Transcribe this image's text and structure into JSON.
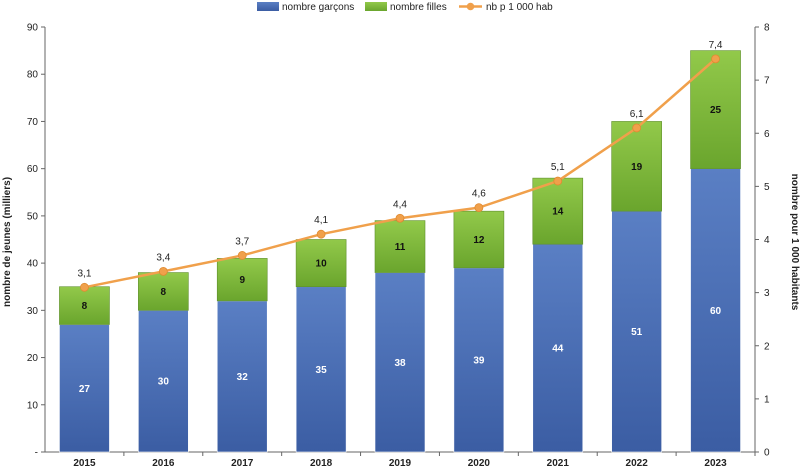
{
  "chart_data": {
    "type": "bar",
    "stacked": true,
    "categories": [
      "2015",
      "2016",
      "2017",
      "2018",
      "2019",
      "2020",
      "2021",
      "2022",
      "2023"
    ],
    "series": [
      {
        "name": "nombre garçons",
        "type": "bar",
        "axis": "left",
        "color": "#4a6fb5",
        "values": [
          27,
          30,
          32,
          35,
          38,
          39,
          44,
          51,
          60
        ],
        "labels": [
          "27",
          "30",
          "32",
          "35",
          "38",
          "39",
          "44",
          "51",
          "60"
        ]
      },
      {
        "name": "nombre filles",
        "type": "bar",
        "axis": "left",
        "color": "#7fba3a",
        "values": [
          8,
          8,
          9,
          10,
          11,
          12,
          14,
          19,
          25
        ],
        "labels": [
          "8",
          "8",
          "9",
          "10",
          "11",
          "12",
          "14",
          "19",
          "25"
        ]
      },
      {
        "name": "nb p 1 000 hab",
        "type": "line",
        "axis": "right",
        "color": "#f0a04b",
        "values": [
          3.1,
          3.4,
          3.7,
          4.1,
          4.4,
          4.6,
          5.1,
          6.1,
          7.4
        ],
        "labels": [
          "3,1",
          "3,4",
          "3,7",
          "4,1",
          "4,4",
          "4,6",
          "5,1",
          "6,1",
          "7,4"
        ]
      }
    ],
    "ylabel": "nombre de jeunes (milliers)",
    "y2label": "nombre pour 1 000 habitants",
    "ylim": [
      0,
      90
    ],
    "y2lim": [
      0,
      8
    ],
    "yticks": [
      "-",
      "10",
      "20",
      "30",
      "40",
      "50",
      "60",
      "70",
      "80",
      "90"
    ],
    "y2ticks": [
      "0",
      "1",
      "2",
      "3",
      "4",
      "5",
      "6",
      "7",
      "8"
    ],
    "legend_position": "top-center",
    "grid": false
  }
}
